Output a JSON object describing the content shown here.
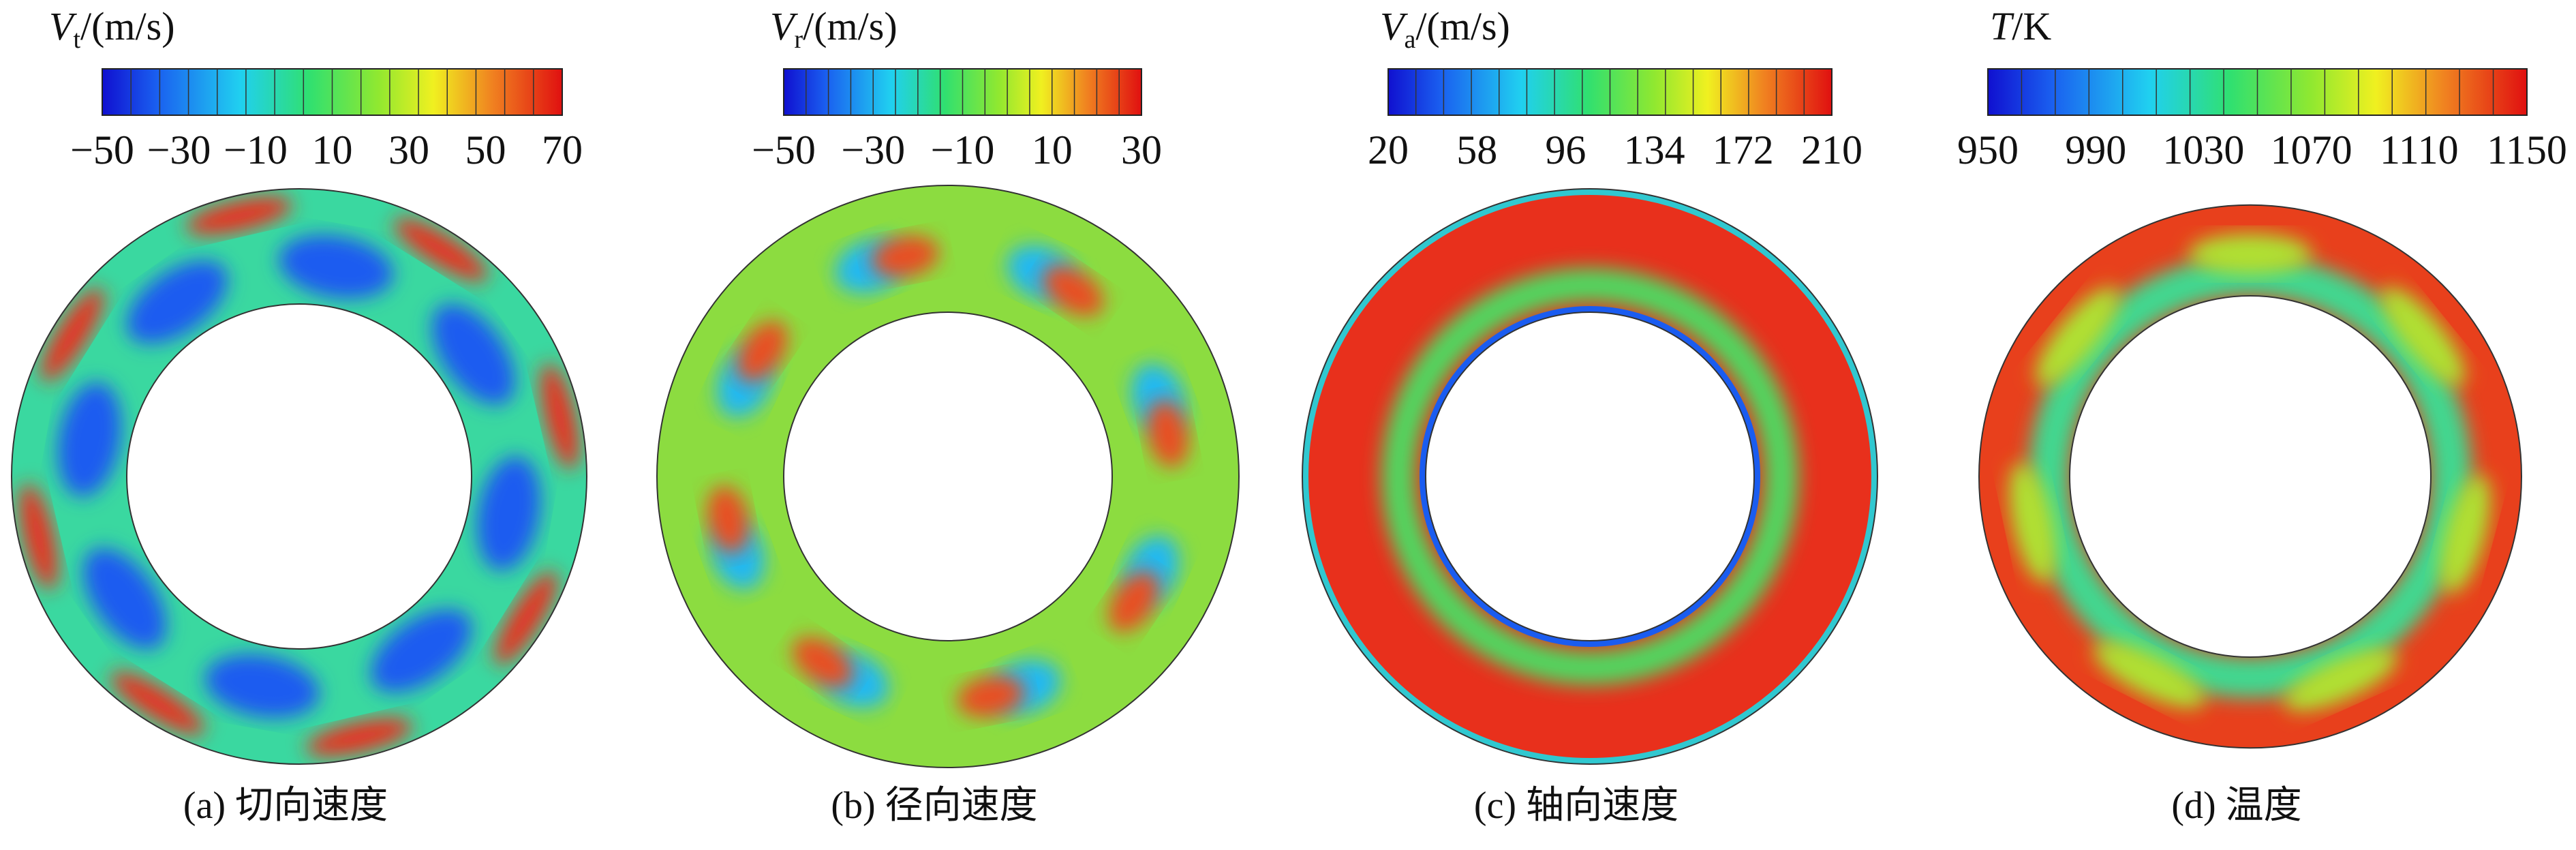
{
  "panels": [
    {
      "title": {
        "symbol": "V",
        "subscript": "t",
        "unit": "/(m/s)"
      },
      "colorbar": {
        "ticks": [
          "−50",
          "−30",
          "−10",
          "10",
          "30",
          "50",
          "70"
        ]
      },
      "caption": "(a) 切向速度"
    },
    {
      "title": {
        "symbol": "V",
        "subscript": "r",
        "unit": "/(m/s)"
      },
      "colorbar": {
        "ticks": [
          "−50",
          "−30",
          "−10",
          "10",
          "30"
        ]
      },
      "caption": "(b) 径向速度"
    },
    {
      "title": {
        "symbol": "V",
        "subscript": "a",
        "unit": "/(m/s)"
      },
      "colorbar": {
        "ticks": [
          "20",
          "58",
          "96",
          "134",
          "172",
          "210"
        ]
      },
      "caption": "(c) 轴向速度"
    },
    {
      "title": {
        "symbol": "T",
        "unit": "/K"
      },
      "colorbar": {
        "ticks": [
          "950",
          "990",
          "1030",
          "1070",
          "1110",
          "1150"
        ]
      },
      "caption": "(d) 温度"
    }
  ]
}
